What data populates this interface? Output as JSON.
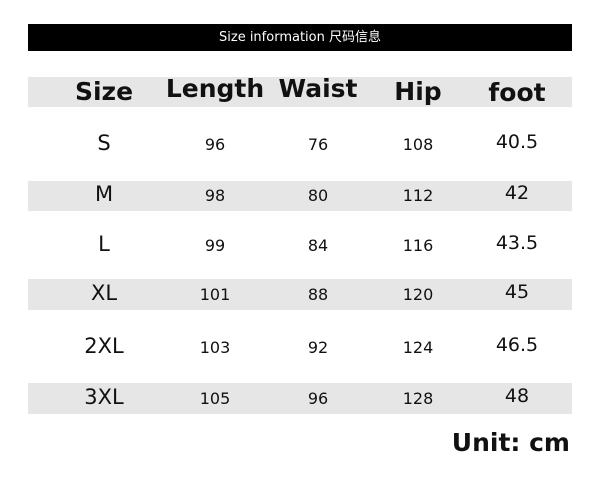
{
  "title": "Size information 尺码信息",
  "columns": [
    "Size",
    "Length",
    "Waist",
    "Hip",
    "foot"
  ],
  "rows": [
    [
      "S",
      "96",
      "76",
      "108",
      "40.5"
    ],
    [
      "M",
      "98",
      "80",
      "112",
      "42"
    ],
    [
      "L",
      "99",
      "84",
      "116",
      "43.5"
    ],
    [
      "XL",
      "101",
      "88",
      "120",
      "45"
    ],
    [
      "2XL",
      "103",
      "92",
      "124",
      "46.5"
    ],
    [
      "3XL",
      "105",
      "96",
      "128",
      "48"
    ]
  ],
  "unit": "Unit: cm",
  "colors": {
    "title_bar": "#000000",
    "stripe": "#e6e6e6"
  }
}
